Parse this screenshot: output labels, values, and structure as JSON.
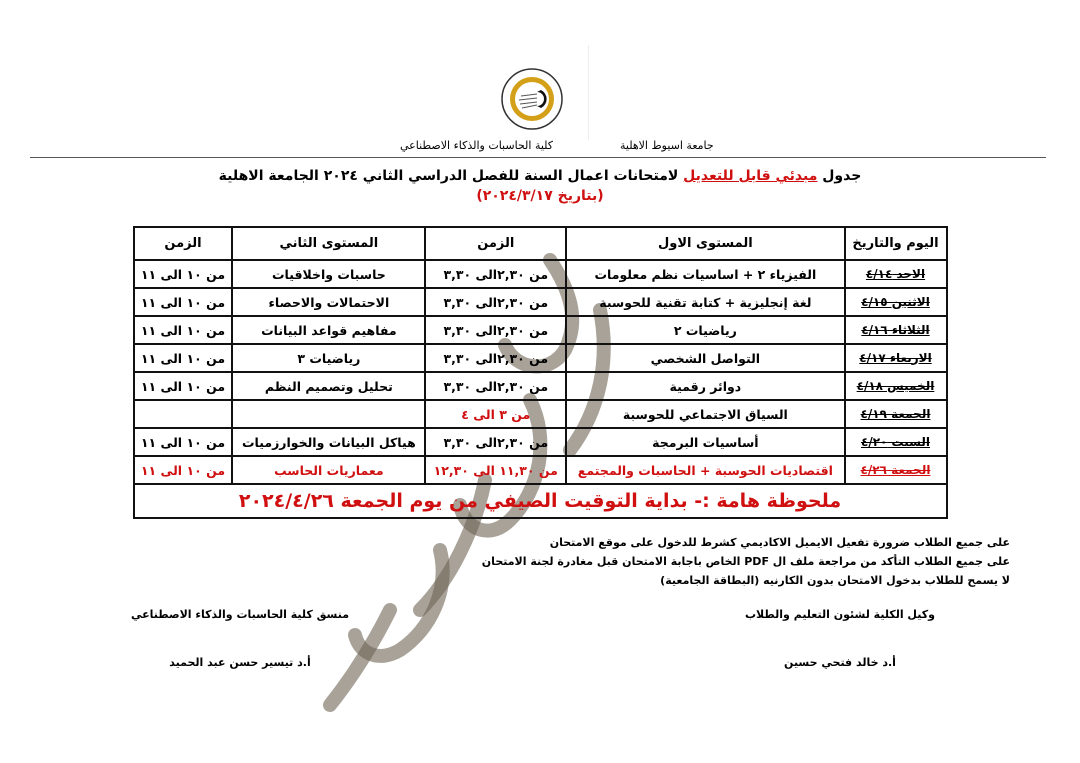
{
  "header": {
    "university": "جامعة اسيوط الاهلية",
    "faculty": "كلية الحاسبات والذكاء الاصطناعي",
    "logo_text": "ASSIUT NATIONAL UNIVERSITY",
    "logo_colors": {
      "ring": "#d4a017",
      "inner": "#111111"
    }
  },
  "title": {
    "prefix": "جدول",
    "highlight": "مبدئي قابل للتعديل",
    "suffix": "لامتحانات اعمال السنة للفصل الدراسي الثاني ٢٠٢٤ الجامعة الاهلية",
    "date": "(بتاريخ ٢٠٢٤/٣/١٧)"
  },
  "table": {
    "headers": [
      "اليوم والتاريخ",
      "المستوى الاول",
      "الزمن",
      "المستوى الثاني",
      "الزمن"
    ],
    "rows": [
      {
        "day": "الاحد ٤/١٤",
        "level1": "الفيزياء ٢ + اساسيات نظم معلومات",
        "time1": "من ٢,٣٠الى ٣,٣٠",
        "level2": "حاسبات واخلاقيات",
        "time2": "من ١٠ الى ١١",
        "red": false
      },
      {
        "day": "الاثنين ٤/١٥",
        "level1": "لغة إنجليزية + كتابة تقنية للحوسبة",
        "time1": "من ٢,٣٠الى ٣,٣٠",
        "level2": "الاحتمالات والاحصاء",
        "time2": "من ١٠ الى ١١",
        "red": false
      },
      {
        "day": "الثلاثاء ٤/١٦",
        "level1": "رياضيات ٢",
        "time1": "من ٢,٣٠الى ٣,٣٠",
        "level2": "مفاهيم قواعد البيانات",
        "time2": "من ١٠ الى ١١",
        "red": false
      },
      {
        "day": "الاربعاء ٤/١٧",
        "level1": "التواصل الشخصي",
        "time1": "من ٢,٣٠الى ٣,٣٠",
        "level2": "رياضيات ٣",
        "time2": "من ١٠ الى ١١",
        "red": false
      },
      {
        "day": "الخميس ٤/١٨",
        "level1": "دوائر رقمية",
        "time1": "من ٢,٣٠الى ٣,٣٠",
        "level2": "تحليل وتصميم النظم",
        "time2": "من ١٠ الى ١١",
        "red": false
      },
      {
        "day": "الجمعة ٤/١٩",
        "level1": "السياق الاجتماعي للحوسبة",
        "time1": "من ٣ الى ٤",
        "level2": "",
        "time2": "",
        "red": false,
        "time1_red": true
      },
      {
        "day": "السبت ٤/٢٠",
        "level1": "أساسيات البرمجة",
        "time1": "من ٢,٣٠الى ٣,٣٠",
        "level2": "هياكل البيانات والخوارزميات",
        "time2": "من ١٠ الى ١١",
        "red": false
      },
      {
        "day": "الجمعة ٤/٢٦",
        "level1": "اقتصاديات الحوسبة + الحاسبات والمجتمع",
        "time1": "من ١١,٣٠ الى ١٢,٣٠",
        "level2": "معماريات الحاسب",
        "time2": "من ١٠ الى ١١",
        "red": true
      }
    ],
    "note": "ملحوظة هامة :- بداية التوقيت الصيفي من يوم الجمعة ٢٠٢٤/٤/٢٦"
  },
  "instructions": [
    "على جميع الطلاب  ضرورة تفعيل الايميل الاكاديمي كشرط  للدخول على موقع الامتحان",
    "على جميع الطلاب التأكد من مراجعة ملف ال PDF الخاص باجابة الامتحان قبل مغادرة لجنة الامتحان",
    "لا يسمح للطلاب بدخول الامتحان  بدون الكارنيه (البطاقة الجامعية)"
  ],
  "signatures": {
    "right_title": "وكيل الكلية لشئون التعليم والطلاب",
    "right_name": "أ.د خالد فتحي حسين",
    "left_title": "منسق كلية الحاسبات والذكاء الاصطناعي",
    "left_name": "أ.د تيسير حسن عبد الحميد"
  },
  "watermark": "قابل للتعديل",
  "colors": {
    "accent_red": "#d01010",
    "watermark": "#6e6455"
  }
}
